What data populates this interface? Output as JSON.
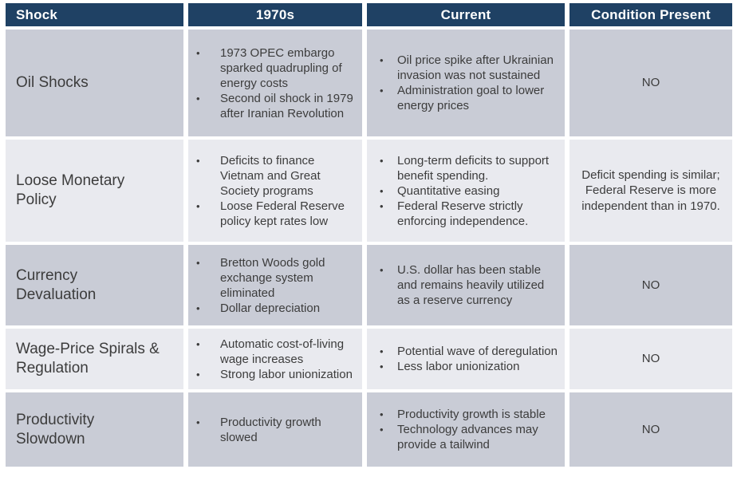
{
  "colors": {
    "header_bg": "#1f4164",
    "header_text": "#ffffff",
    "row_odd_bg": "#c9ccd6",
    "row_even_bg": "#e9eaef",
    "body_text": "#3c3c3c"
  },
  "table": {
    "headers": [
      "Shock",
      "1970s",
      "Current",
      "Condition Present"
    ],
    "bullet_glyph": "•",
    "rows": [
      {
        "shock": "Oil Shocks",
        "bullets_1970s": [
          "1973 OPEC embargo sparked quadrupling of energy costs",
          "Second oil shock in 1979 after Iranian Revolution"
        ],
        "bullets_current": [
          "Oil price spike after Ukrainian invasion was not sustained",
          "Administration goal to lower energy prices"
        ],
        "condition": "NO"
      },
      {
        "shock": "Loose Monetary Policy",
        "bullets_1970s": [
          "Deficits to finance Vietnam and Great Society programs",
          "Loose Federal Reserve policy kept rates low"
        ],
        "bullets_current": [
          "Long-term deficits to support benefit spending.",
          "Quantitative easing",
          "Federal Reserve strictly enforcing independence."
        ],
        "condition": "Deficit spending is similar; Federal Reserve is more independent than in 1970."
      },
      {
        "shock": "Currency Devaluation",
        "bullets_1970s": [
          "Bretton Woods gold exchange system eliminated",
          "Dollar depreciation"
        ],
        "bullets_current": [
          "U.S. dollar has been stable and remains heavily utilized as a reserve currency"
        ],
        "condition": "NO"
      },
      {
        "shock": "Wage-Price Spirals & Regulation",
        "bullets_1970s": [
          "Automatic cost-of-living wage increases",
          "Strong labor unionization"
        ],
        "bullets_current": [
          "Potential wave of deregulation",
          "Less labor unionization"
        ],
        "condition": "NO"
      },
      {
        "shock": "Productivity Slowdown",
        "bullets_1970s": [
          "Productivity growth slowed"
        ],
        "bullets_current": [
          "Productivity growth is stable",
          "Technology advances may provide a tailwind"
        ],
        "condition": "NO"
      }
    ]
  }
}
